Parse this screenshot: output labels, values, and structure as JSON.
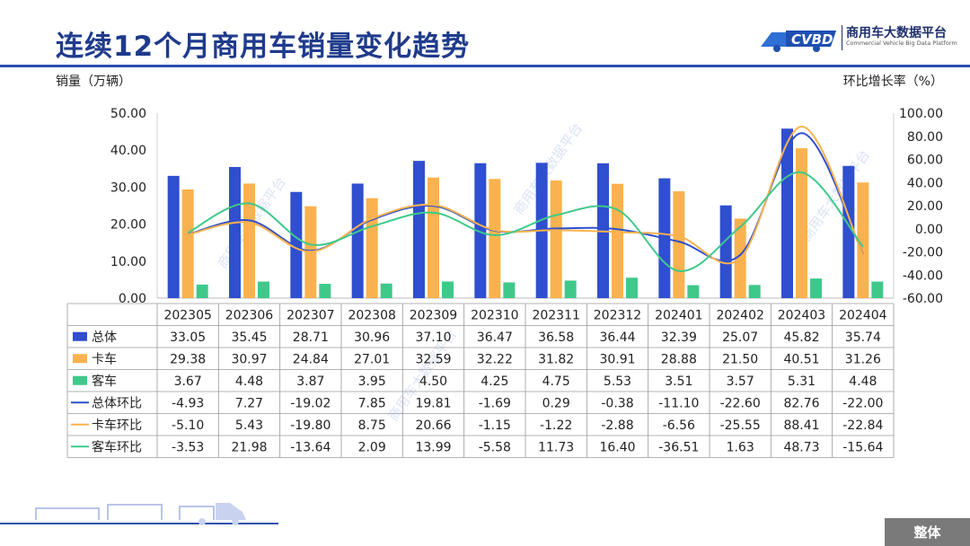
{
  "title": "连续12个月商用车销量变化趋势",
  "logo": {
    "mark": "CVBD",
    "name": "商用车大数据平台",
    "subtitle": "Commercial Vehicle Big Data Platform"
  },
  "watermark": "商用车大数据平台",
  "section_tag": "整体",
  "colors": {
    "title": "#1f3b8c",
    "total": "#2f4fce",
    "truck": "#f9b24f",
    "bus": "#3ec98a",
    "rule": "#2f4fb0"
  },
  "chart_data": {
    "type": "bar",
    "categories": [
      "202305",
      "202306",
      "202307",
      "202308",
      "202309",
      "202310",
      "202311",
      "202312",
      "202401",
      "202402",
      "202403",
      "202404"
    ],
    "ylabel": "销量（万辆）",
    "y2label": "环比增长率（%）",
    "ylim": [
      0,
      50
    ],
    "yticks": [
      "0.00",
      "10.00",
      "20.00",
      "30.00",
      "40.00",
      "50.00"
    ],
    "y2lim": [
      -60,
      100
    ],
    "y2ticks": [
      "-60.00",
      "-40.00",
      "-20.00",
      "0.00",
      "20.00",
      "40.00",
      "60.00",
      "80.00",
      "100.00"
    ],
    "series": [
      {
        "name": "总体",
        "kind": "bar",
        "axis": "left",
        "color": "#2f4fce",
        "labels": [
          "33.05",
          "35.45",
          "28.71",
          "30.96",
          "37.10",
          "36.47",
          "36.58",
          "36.44",
          "32.39",
          "25.07",
          "45.82",
          "35.74"
        ],
        "values": [
          33.05,
          35.45,
          28.71,
          30.96,
          37.1,
          36.47,
          36.58,
          36.44,
          32.39,
          25.07,
          45.82,
          35.74
        ]
      },
      {
        "name": "卡车",
        "kind": "bar",
        "axis": "left",
        "color": "#f9b24f",
        "labels": [
          "29.38",
          "30.97",
          "24.84",
          "27.01",
          "32.59",
          "32.22",
          "31.82",
          "30.91",
          "28.88",
          "21.50",
          "40.51",
          "31.26"
        ],
        "values": [
          29.38,
          30.97,
          24.84,
          27.01,
          32.59,
          32.22,
          31.82,
          30.91,
          28.88,
          21.5,
          40.51,
          31.26
        ]
      },
      {
        "name": "客车",
        "kind": "bar",
        "axis": "left",
        "color": "#3ec98a",
        "labels": [
          "3.67",
          "4.48",
          "3.87",
          "3.95",
          "4.50",
          "4.25",
          "4.75",
          "5.53",
          "3.51",
          "3.57",
          "5.31",
          "4.48"
        ],
        "values": [
          3.67,
          4.48,
          3.87,
          3.95,
          4.5,
          4.25,
          4.75,
          5.53,
          3.51,
          3.57,
          5.31,
          4.48
        ]
      },
      {
        "name": "总体环比",
        "kind": "line",
        "axis": "right",
        "color": "#2f4fce",
        "labels": [
          "-4.93",
          "7.27",
          "-19.02",
          "7.85",
          "19.81",
          "-1.69",
          "0.29",
          "-0.38",
          "-11.10",
          "-22.60",
          "82.76",
          "-22.00"
        ],
        "values": [
          -4.93,
          7.27,
          -19.02,
          7.85,
          19.81,
          -1.69,
          0.29,
          -0.38,
          -11.1,
          -22.6,
          82.76,
          -22.0
        ]
      },
      {
        "name": "卡车环比",
        "kind": "line",
        "axis": "right",
        "color": "#f9b24f",
        "labels": [
          "-5.10",
          "5.43",
          "-19.80",
          "8.75",
          "20.66",
          "-1.15",
          "-1.22",
          "-2.88",
          "-6.56",
          "-25.55",
          "88.41",
          "-22.84"
        ],
        "values": [
          -5.1,
          5.43,
          -19.8,
          8.75,
          20.66,
          -1.15,
          -1.22,
          -2.88,
          -6.56,
          -25.55,
          88.41,
          -22.84
        ]
      },
      {
        "name": "客车环比",
        "kind": "line",
        "axis": "right",
        "color": "#3ec98a",
        "labels": [
          "-3.53",
          "21.98",
          "-13.64",
          "2.09",
          "13.99",
          "-5.58",
          "11.73",
          "16.40",
          "-36.51",
          "1.63",
          "48.73",
          "-15.64"
        ],
        "values": [
          -3.53,
          21.98,
          -13.64,
          2.09,
          13.99,
          -5.58,
          11.73,
          16.4,
          -36.51,
          1.63,
          48.73,
          -15.64
        ]
      }
    ]
  }
}
